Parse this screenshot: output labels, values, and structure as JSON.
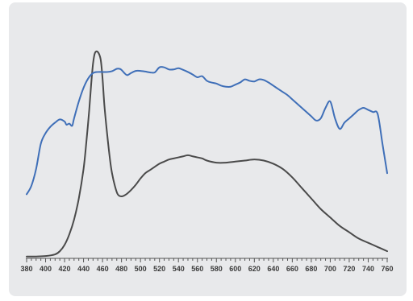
{
  "chart_data": {
    "type": "line",
    "title": "",
    "xlabel": "",
    "ylabel": "",
    "xlim": [
      380,
      760
    ],
    "ylim": [
      0,
      1
    ],
    "x_ticks": [
      "380",
      "400",
      "420",
      "440",
      "460",
      "480",
      "500",
      "520",
      "540",
      "560",
      "580",
      "600",
      "620",
      "640",
      "660",
      "680",
      "700",
      "720",
      "740",
      "760"
    ],
    "grid": false,
    "legend": "none",
    "series": [
      {
        "color": "#3f6fb8",
        "x": [
          380,
          385,
          390,
          395,
          400,
          405,
          410,
          415,
          420,
          422,
          425,
          428,
          430,
          435,
          440,
          445,
          450,
          455,
          460,
          465,
          470,
          475,
          478,
          480,
          483,
          486,
          490,
          495,
          500,
          505,
          510,
          515,
          520,
          525,
          530,
          535,
          540,
          545,
          550,
          555,
          560,
          565,
          570,
          575,
          580,
          585,
          590,
          595,
          600,
          605,
          610,
          615,
          620,
          625,
          630,
          635,
          640,
          645,
          650,
          655,
          660,
          665,
          670,
          675,
          680,
          685,
          690,
          695,
          700,
          705,
          710,
          715,
          720,
          725,
          730,
          735,
          740,
          745,
          750,
          755,
          760
        ],
        "values": [
          0.3,
          0.34,
          0.42,
          0.54,
          0.59,
          0.62,
          0.64,
          0.655,
          0.645,
          0.63,
          0.635,
          0.625,
          0.66,
          0.74,
          0.805,
          0.85,
          0.875,
          0.88,
          0.88,
          0.88,
          0.884,
          0.895,
          0.895,
          0.89,
          0.875,
          0.865,
          0.875,
          0.885,
          0.885,
          0.882,
          0.878,
          0.878,
          0.902,
          0.902,
          0.892,
          0.892,
          0.898,
          0.89,
          0.88,
          0.868,
          0.855,
          0.86,
          0.838,
          0.83,
          0.825,
          0.815,
          0.81,
          0.81,
          0.82,
          0.83,
          0.845,
          0.838,
          0.835,
          0.845,
          0.842,
          0.83,
          0.815,
          0.8,
          0.785,
          0.77,
          0.75,
          0.73,
          0.71,
          0.69,
          0.67,
          0.65,
          0.66,
          0.71,
          0.74,
          0.66,
          0.61,
          0.64,
          0.66,
          0.68,
          0.7,
          0.71,
          0.7,
          0.69,
          0.68,
          0.54,
          0.4
        ]
      },
      {
        "color": "#4a4a4a",
        "x": [
          380,
          390,
          400,
          410,
          415,
          420,
          425,
          430,
          435,
          440,
          443,
          446,
          448,
          450,
          452,
          455,
          458,
          460,
          462,
          465,
          468,
          470,
          473,
          476,
          480,
          485,
          490,
          495,
          500,
          505,
          510,
          515,
          520,
          525,
          530,
          535,
          540,
          545,
          550,
          555,
          560,
          565,
          570,
          580,
          590,
          600,
          610,
          620,
          630,
          640,
          650,
          660,
          670,
          680,
          690,
          700,
          710,
          720,
          730,
          740,
          750,
          760
        ],
        "values": [
          0.005,
          0.005,
          0.007,
          0.015,
          0.03,
          0.06,
          0.11,
          0.18,
          0.28,
          0.42,
          0.55,
          0.7,
          0.82,
          0.92,
          0.97,
          0.975,
          0.94,
          0.85,
          0.72,
          0.58,
          0.46,
          0.4,
          0.34,
          0.3,
          0.29,
          0.3,
          0.32,
          0.345,
          0.375,
          0.4,
          0.415,
          0.43,
          0.445,
          0.455,
          0.465,
          0.47,
          0.475,
          0.48,
          0.485,
          0.48,
          0.475,
          0.47,
          0.46,
          0.45,
          0.45,
          0.455,
          0.46,
          0.465,
          0.46,
          0.445,
          0.42,
          0.38,
          0.33,
          0.28,
          0.23,
          0.19,
          0.15,
          0.12,
          0.09,
          0.07,
          0.05,
          0.03
        ]
      }
    ]
  }
}
